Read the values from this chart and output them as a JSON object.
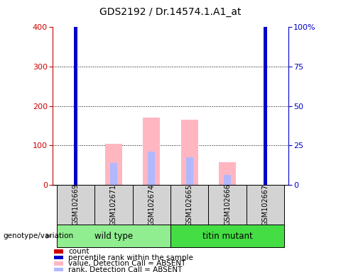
{
  "title": "GDS2192 / Dr.14574.1.A1_at",
  "samples": [
    "GSM102669",
    "GSM102671",
    "GSM102674",
    "GSM102665",
    "GSM102666",
    "GSM102667"
  ],
  "count_values": [
    390,
    0,
    0,
    0,
    0,
    340
  ],
  "percentile_values": [
    145,
    0,
    0,
    0,
    0,
    140
  ],
  "absent_value_bars": [
    0,
    105,
    170,
    165,
    57,
    0
  ],
  "absent_rank_bars": [
    0,
    55,
    85,
    70,
    25,
    0
  ],
  "ylim_left": [
    0,
    400
  ],
  "ylim_right": [
    0,
    100
  ],
  "left_ticks": [
    0,
    100,
    200,
    300,
    400
  ],
  "right_ticks": [
    0,
    25,
    50,
    75,
    100
  ],
  "right_tick_labels": [
    "0",
    "25",
    "50",
    "75",
    "100%"
  ],
  "count_color": "#cc0000",
  "percentile_color": "#0000cc",
  "absent_value_color": "#ffb6c1",
  "absent_rank_color": "#b0b8ff",
  "wt_color": "#90ee90",
  "titin_color": "#44dd44",
  "sample_bg": "#d3d3d3",
  "grid_yticks": [
    100,
    200,
    300
  ],
  "legend_items": [
    {
      "label": "count",
      "color": "#cc0000"
    },
    {
      "label": "percentile rank within the sample",
      "color": "#0000cc"
    },
    {
      "label": "value, Detection Call = ABSENT",
      "color": "#ffb6c1"
    },
    {
      "label": "rank, Detection Call = ABSENT",
      "color": "#b0b8ff"
    }
  ]
}
